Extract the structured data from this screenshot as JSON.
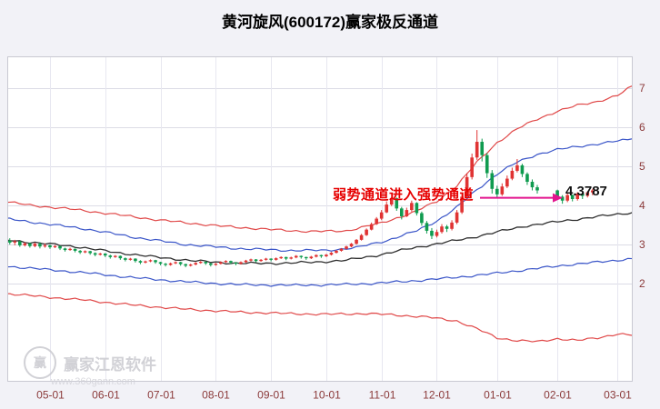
{
  "title": "黄河旋风(600172)赢家极反通道",
  "annotation": {
    "text": "弱势通道进入强势通道",
    "price_label": "4.3787",
    "arrow_color": "#e2168e",
    "text_color": "#e60000"
  },
  "watermark": {
    "logo_char": "赢",
    "brand": "赢家江恩软件",
    "url": "www.360gann.com"
  },
  "chart_data": {
    "type": "candlestick",
    "title": "黄河旋风(600172)赢家极反通道",
    "ylim": [
      -0.5,
      7.8
    ],
    "xlim": [
      -0.5,
      124
    ],
    "y_ticks": [
      2,
      3,
      4,
      5,
      6,
      7
    ],
    "x_ticks": [
      {
        "label": "05-01",
        "i": 8
      },
      {
        "label": "06-01",
        "i": 19
      },
      {
        "label": "07-01",
        "i": 30
      },
      {
        "label": "08-01",
        "i": 41
      },
      {
        "label": "09-01",
        "i": 52
      },
      {
        "label": "10-01",
        "i": 63
      },
      {
        "label": "11-01",
        "i": 74
      },
      {
        "label": "12-01",
        "i": 85
      },
      {
        "label": "01-01",
        "i": 97
      },
      {
        "label": "02-01",
        "i": 109
      },
      {
        "label": "03-01",
        "i": 121
      }
    ],
    "colors": {
      "bg": "#f2f2f7",
      "plot_bg": "#ffffff",
      "grid_h": "#dcdce6",
      "grid_v": "#e7e7f0",
      "frame": "#c9c9d2",
      "axis_text": "#8b3a3a",
      "up": "#e03333",
      "down": "#0f9b4f"
    },
    "candles": [
      [
        0,
        3.1,
        3.16,
        3.0,
        3.05
      ],
      [
        1,
        3.05,
        3.12,
        2.98,
        3.08
      ],
      [
        2,
        3.08,
        3.1,
        2.94,
        2.98
      ],
      [
        3,
        2.98,
        3.06,
        2.95,
        3.03
      ],
      [
        4,
        3.03,
        3.05,
        2.92,
        2.96
      ],
      [
        5,
        2.96,
        3.05,
        2.93,
        3.02
      ],
      [
        6,
        3.02,
        3.06,
        2.9,
        2.95
      ],
      [
        7,
        2.95,
        3.03,
        2.92,
        2.98
      ],
      [
        8,
        2.98,
        3.0,
        2.89,
        2.93
      ],
      [
        9,
        2.93,
        2.99,
        2.91,
        2.96
      ],
      [
        10,
        2.96,
        2.97,
        2.86,
        2.9
      ],
      [
        11,
        2.9,
        2.92,
        2.82,
        2.86
      ],
      [
        12,
        2.86,
        2.92,
        2.84,
        2.89
      ],
      [
        13,
        2.89,
        2.9,
        2.8,
        2.84
      ],
      [
        14,
        2.84,
        2.86,
        2.76,
        2.8
      ],
      [
        15,
        2.8,
        2.85,
        2.78,
        2.83
      ],
      [
        16,
        2.83,
        2.84,
        2.74,
        2.78
      ],
      [
        17,
        2.78,
        2.8,
        2.7,
        2.74
      ],
      [
        18,
        2.74,
        2.79,
        2.72,
        2.77
      ],
      [
        19,
        2.77,
        2.78,
        2.68,
        2.72
      ],
      [
        20,
        2.72,
        2.74,
        2.64,
        2.68
      ],
      [
        21,
        2.68,
        2.73,
        2.66,
        2.71
      ],
      [
        22,
        2.71,
        2.72,
        2.61,
        2.65
      ],
      [
        23,
        2.65,
        2.67,
        2.57,
        2.61
      ],
      [
        24,
        2.61,
        2.66,
        2.59,
        2.64
      ],
      [
        25,
        2.64,
        2.65,
        2.54,
        2.58
      ],
      [
        26,
        2.58,
        2.6,
        2.5,
        2.54
      ],
      [
        27,
        2.54,
        2.59,
        2.52,
        2.57
      ],
      [
        28,
        2.57,
        2.62,
        2.55,
        2.6
      ],
      [
        29,
        2.6,
        2.61,
        2.51,
        2.55
      ],
      [
        30,
        2.55,
        2.56,
        2.47,
        2.51
      ],
      [
        31,
        2.51,
        2.53,
        2.44,
        2.48
      ],
      [
        32,
        2.48,
        2.54,
        2.46,
        2.52
      ],
      [
        33,
        2.52,
        2.57,
        2.5,
        2.55
      ],
      [
        34,
        2.55,
        2.56,
        2.46,
        2.5
      ],
      [
        35,
        2.5,
        2.51,
        2.42,
        2.46
      ],
      [
        36,
        2.46,
        2.51,
        2.44,
        2.49
      ],
      [
        37,
        2.49,
        2.55,
        2.47,
        2.53
      ],
      [
        38,
        2.53,
        2.58,
        2.51,
        2.56
      ],
      [
        39,
        2.56,
        2.57,
        2.48,
        2.52
      ],
      [
        40,
        2.52,
        2.53,
        2.44,
        2.48
      ],
      [
        41,
        2.48,
        2.53,
        2.46,
        2.51
      ],
      [
        42,
        2.51,
        2.57,
        2.49,
        2.55
      ],
      [
        43,
        2.55,
        2.6,
        2.53,
        2.58
      ],
      [
        44,
        2.58,
        2.59,
        2.5,
        2.54
      ],
      [
        45,
        2.54,
        2.55,
        2.47,
        2.51
      ],
      [
        46,
        2.51,
        2.57,
        2.49,
        2.55
      ],
      [
        47,
        2.55,
        2.61,
        2.53,
        2.59
      ],
      [
        48,
        2.59,
        2.64,
        2.57,
        2.62
      ],
      [
        49,
        2.62,
        2.63,
        2.54,
        2.58
      ],
      [
        50,
        2.58,
        2.63,
        2.56,
        2.61
      ],
      [
        51,
        2.61,
        2.66,
        2.59,
        2.64
      ],
      [
        52,
        2.64,
        2.65,
        2.57,
        2.61
      ],
      [
        53,
        2.61,
        2.67,
        2.59,
        2.65
      ],
      [
        54,
        2.65,
        2.7,
        2.63,
        2.68
      ],
      [
        55,
        2.68,
        2.69,
        2.6,
        2.64
      ],
      [
        56,
        2.64,
        2.69,
        2.62,
        2.67
      ],
      [
        57,
        2.67,
        2.73,
        2.65,
        2.71
      ],
      [
        58,
        2.71,
        2.72,
        2.64,
        2.68
      ],
      [
        59,
        2.68,
        2.69,
        2.61,
        2.65
      ],
      [
        60,
        2.65,
        2.71,
        2.63,
        2.69
      ],
      [
        61,
        2.69,
        2.75,
        2.67,
        2.73
      ],
      [
        62,
        2.73,
        2.74,
        2.66,
        2.7
      ],
      [
        63,
        2.7,
        2.76,
        2.68,
        2.74
      ],
      [
        64,
        2.74,
        2.81,
        2.72,
        2.79
      ],
      [
        65,
        2.79,
        2.86,
        2.77,
        2.84
      ],
      [
        66,
        2.84,
        2.91,
        2.82,
        2.89
      ],
      [
        67,
        2.89,
        2.97,
        2.87,
        2.95
      ],
      [
        68,
        2.95,
        3.04,
        2.93,
        3.02
      ],
      [
        69,
        3.02,
        3.14,
        3.0,
        3.12
      ],
      [
        70,
        3.12,
        3.27,
        3.1,
        3.24
      ],
      [
        71,
        3.24,
        3.41,
        3.22,
        3.38
      ],
      [
        72,
        3.38,
        3.56,
        3.36,
        3.52
      ],
      [
        73,
        3.52,
        3.7,
        3.5,
        3.66
      ],
      [
        74,
        3.66,
        3.88,
        3.62,
        3.82
      ],
      [
        75,
        3.82,
        4.1,
        3.8,
        4.02
      ],
      [
        76,
        4.02,
        4.3,
        3.98,
        4.18
      ],
      [
        77,
        4.18,
        4.2,
        3.86,
        3.92
      ],
      [
        78,
        3.92,
        3.96,
        3.64,
        3.72
      ],
      [
        79,
        3.72,
        3.94,
        3.7,
        3.88
      ],
      [
        80,
        3.88,
        4.12,
        3.84,
        4.06
      ],
      [
        81,
        4.06,
        4.08,
        3.74,
        3.8
      ],
      [
        82,
        3.8,
        3.84,
        3.48,
        3.55
      ],
      [
        83,
        3.55,
        3.6,
        3.28,
        3.35
      ],
      [
        84,
        3.35,
        3.42,
        3.14,
        3.22
      ],
      [
        85,
        3.22,
        3.38,
        3.18,
        3.32
      ],
      [
        86,
        3.32,
        3.52,
        3.28,
        3.46
      ],
      [
        87,
        3.46,
        3.5,
        3.32,
        3.4
      ],
      [
        88,
        3.4,
        3.62,
        3.36,
        3.56
      ],
      [
        89,
        3.56,
        3.88,
        3.52,
        3.82
      ],
      [
        90,
        3.82,
        4.3,
        3.78,
        4.22
      ],
      [
        91,
        4.22,
        4.82,
        4.18,
        4.72
      ],
      [
        92,
        4.72,
        5.32,
        4.66,
        5.22
      ],
      [
        93,
        5.22,
        5.92,
        5.16,
        5.62
      ],
      [
        94,
        5.62,
        5.7,
        5.12,
        5.28
      ],
      [
        95,
        5.28,
        5.34,
        4.7,
        4.82
      ],
      [
        96,
        4.82,
        4.9,
        4.3,
        4.42
      ],
      [
        97,
        4.42,
        4.5,
        4.18,
        4.28
      ],
      [
        98,
        4.28,
        4.56,
        4.24,
        4.48
      ],
      [
        99,
        4.48,
        4.76,
        4.44,
        4.68
      ],
      [
        100,
        4.68,
        4.96,
        4.64,
        4.88
      ],
      [
        101,
        4.88,
        5.18,
        4.84,
        5.02
      ],
      [
        102,
        5.02,
        5.06,
        4.72,
        4.8
      ],
      [
        103,
        4.8,
        4.84,
        4.52,
        4.6
      ],
      [
        104,
        4.6,
        4.66,
        4.38,
        4.46
      ],
      [
        105,
        4.46,
        4.52,
        4.3,
        4.38
      ],
      [
        109,
        4.38,
        4.4,
        4.14,
        4.22
      ],
      [
        110,
        4.22,
        4.26,
        4.04,
        4.12
      ],
      [
        111,
        4.12,
        4.3,
        4.08,
        4.26
      ],
      [
        112,
        4.26,
        4.28,
        4.1,
        4.16
      ],
      [
        113,
        4.16,
        4.34,
        4.12,
        4.3
      ],
      [
        114,
        4.3,
        4.32,
        4.16,
        4.24
      ],
      [
        115,
        4.24,
        4.36,
        4.2,
        4.33
      ],
      [
        116,
        4.33,
        4.42,
        4.26,
        4.38
      ]
    ],
    "channel_lines": [
      {
        "name": "outer-upper-red",
        "color": "#e04848",
        "width": 1.2,
        "points": [
          [
            -1,
            4.1
          ],
          [
            4,
            4.0
          ],
          [
            11,
            3.92
          ],
          [
            19,
            3.8
          ],
          [
            30,
            3.62
          ],
          [
            41,
            3.48
          ],
          [
            52,
            3.38
          ],
          [
            60,
            3.33
          ],
          [
            67,
            3.35
          ],
          [
            74,
            3.55
          ],
          [
            80,
            3.8
          ],
          [
            85,
            4.1
          ],
          [
            89,
            4.5
          ],
          [
            93,
            5.1
          ],
          [
            97,
            5.6
          ],
          [
            101,
            5.95
          ],
          [
            105,
            6.2
          ],
          [
            109,
            6.4
          ],
          [
            113,
            6.55
          ],
          [
            117,
            6.65
          ],
          [
            121,
            6.8
          ],
          [
            124,
            7.05
          ]
        ]
      },
      {
        "name": "inner-upper-blue",
        "color": "#3a55c8",
        "width": 1.2,
        "points": [
          [
            -1,
            3.66
          ],
          [
            15,
            3.4
          ],
          [
            25,
            3.18
          ],
          [
            35,
            3.0
          ],
          [
            45,
            2.9
          ],
          [
            55,
            2.85
          ],
          [
            63,
            2.85
          ],
          [
            69,
            2.92
          ],
          [
            75,
            3.1
          ],
          [
            81,
            3.35
          ],
          [
            85,
            3.6
          ],
          [
            89,
            3.95
          ],
          [
            93,
            4.4
          ],
          [
            97,
            4.8
          ],
          [
            101,
            5.1
          ],
          [
            105,
            5.3
          ],
          [
            109,
            5.42
          ],
          [
            113,
            5.5
          ],
          [
            118,
            5.58
          ],
          [
            124,
            5.7
          ]
        ]
      },
      {
        "name": "center-black",
        "color": "#2f2f2f",
        "width": 1.3,
        "points": [
          [
            -1,
            3.12
          ],
          [
            13,
            2.95
          ],
          [
            21,
            2.8
          ],
          [
            29,
            2.68
          ],
          [
            37,
            2.58
          ],
          [
            45,
            2.52
          ],
          [
            53,
            2.52
          ],
          [
            61,
            2.55
          ],
          [
            67,
            2.6
          ],
          [
            73,
            2.72
          ],
          [
            79,
            2.88
          ],
          [
            85,
            3.02
          ],
          [
            91,
            3.15
          ],
          [
            97,
            3.32
          ],
          [
            103,
            3.48
          ],
          [
            109,
            3.58
          ],
          [
            115,
            3.68
          ],
          [
            124,
            3.82
          ]
        ]
      },
      {
        "name": "inner-lower-blue",
        "color": "#3a55c8",
        "width": 1.2,
        "points": [
          [
            -1,
            2.45
          ],
          [
            15,
            2.28
          ],
          [
            25,
            2.15
          ],
          [
            35,
            2.05
          ],
          [
            45,
            1.98
          ],
          [
            55,
            1.96
          ],
          [
            63,
            1.97
          ],
          [
            71,
            2.0
          ],
          [
            79,
            2.06
          ],
          [
            87,
            2.14
          ],
          [
            95,
            2.24
          ],
          [
            103,
            2.36
          ],
          [
            111,
            2.48
          ],
          [
            117,
            2.55
          ],
          [
            124,
            2.64
          ]
        ]
      },
      {
        "name": "outer-lower-red",
        "color": "#e04848",
        "width": 1.2,
        "points": [
          [
            -1,
            1.75
          ],
          [
            15,
            1.58
          ],
          [
            25,
            1.45
          ],
          [
            35,
            1.35
          ],
          [
            45,
            1.28
          ],
          [
            55,
            1.24
          ],
          [
            63,
            1.22
          ],
          [
            71,
            1.24
          ],
          [
            77,
            1.2
          ],
          [
            83,
            1.15
          ],
          [
            89,
            1.05
          ],
          [
            93,
            0.85
          ],
          [
            97,
            0.62
          ],
          [
            101,
            0.55
          ],
          [
            105,
            0.52
          ],
          [
            109,
            0.6
          ],
          [
            113,
            0.55
          ],
          [
            117,
            0.62
          ],
          [
            121,
            0.72
          ],
          [
            124,
            0.68
          ]
        ]
      }
    ]
  }
}
